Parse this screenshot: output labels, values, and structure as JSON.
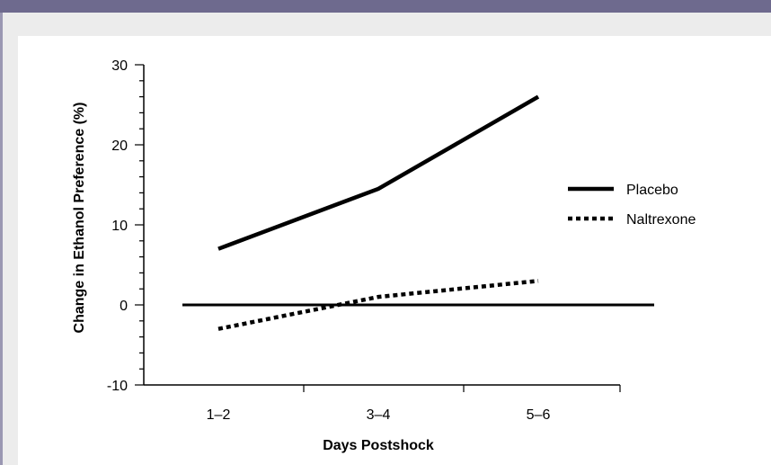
{
  "chart_data": {
    "type": "line",
    "title": "",
    "xlabel": "Days Postshock",
    "ylabel": "Change in Ethanol Preference (%)",
    "categories": [
      "1–2",
      "3–4",
      "5–6"
    ],
    "ylim": [
      -10,
      30
    ],
    "yticks": [
      -10,
      0,
      10,
      20,
      30
    ],
    "ytick_labels": [
      "-10",
      "0",
      "10",
      "20",
      "30"
    ],
    "grid": false,
    "legend_position": "right",
    "reference_line": 0,
    "series": [
      {
        "name": "Placebo",
        "values": [
          7,
          14.5,
          26
        ],
        "style": "solid",
        "color": "#000000"
      },
      {
        "name": "Naltrexone",
        "values": [
          -3,
          1,
          3
        ],
        "style": "dotted",
        "color": "#000000"
      }
    ]
  }
}
